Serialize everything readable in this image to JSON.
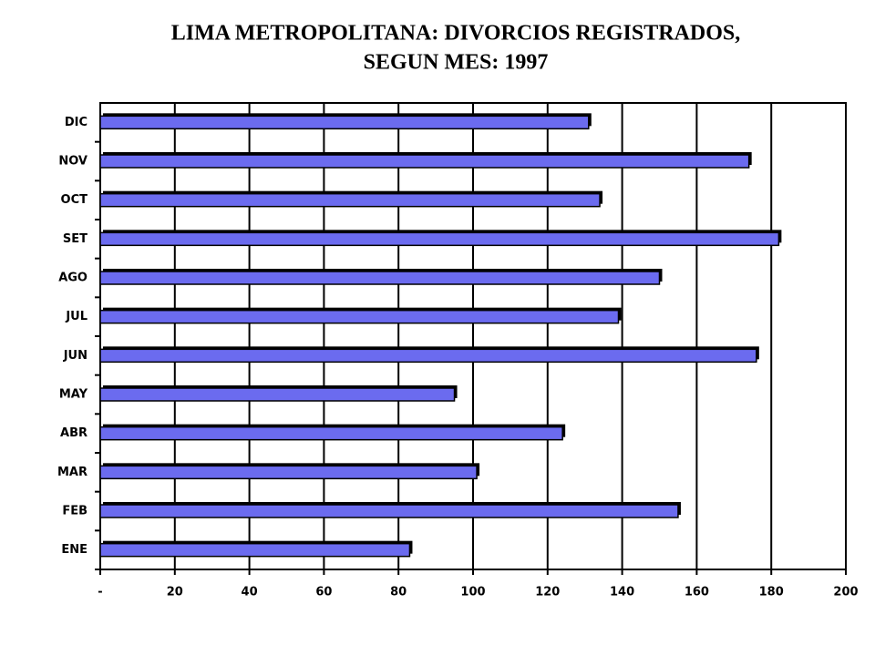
{
  "chart_data": {
    "type": "bar",
    "orientation": "horizontal",
    "title": "LIMA METROPOLITANA: DIVORCIOS REGISTRADOS,",
    "subtitle": "SEGUN MES: 1997",
    "categories": [
      "ENE",
      "FEB",
      "MAR",
      "ABR",
      "MAY",
      "JUN",
      "JUL",
      "AGO",
      "SET",
      "OCT",
      "NOV",
      "DIC"
    ],
    "values": [
      83,
      155,
      101,
      124,
      95,
      176,
      139,
      150,
      182,
      134,
      174,
      131
    ],
    "color": "#6b6bef",
    "xlim": [
      0,
      200
    ],
    "xticks": [
      {
        "value": 0,
        "label": "-"
      },
      20,
      40,
      60,
      80,
      100,
      120,
      140,
      160,
      180,
      200
    ],
    "grid": true
  }
}
